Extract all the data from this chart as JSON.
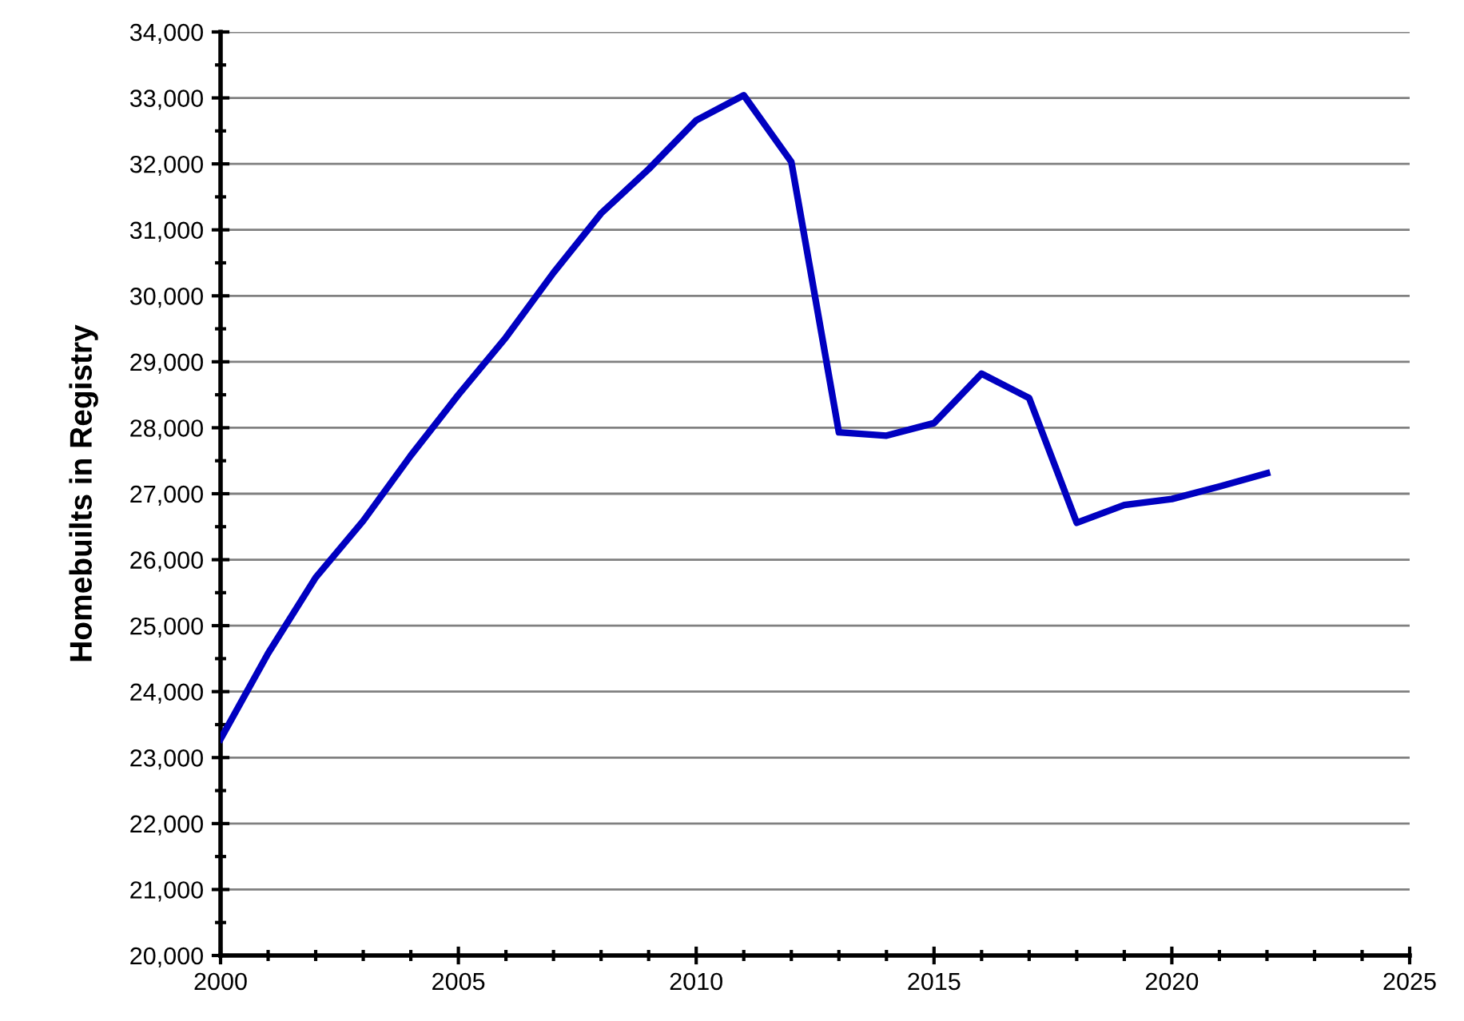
{
  "chart_data": {
    "type": "line",
    "ylabel": "Homebuilts in Registry",
    "x": [
      2000,
      2001,
      2002,
      2003,
      2004,
      2005,
      2006,
      2007,
      2008,
      2009,
      2010,
      2011,
      2012,
      2013,
      2014,
      2015,
      2016,
      2017,
      2018,
      2019,
      2020,
      2021,
      2022
    ],
    "series": [
      {
        "color": "#0000c0",
        "values": [
          23280,
          24580,
          25730,
          26590,
          27580,
          28500,
          29370,
          30350,
          31250,
          31920,
          32660,
          33040,
          32030,
          27930,
          27880,
          28070,
          28820,
          28450,
          26560,
          26830,
          26920,
          27110,
          27310
        ]
      }
    ],
    "xlim": [
      2000,
      2025
    ],
    "xticks": [
      2000,
      {
        "value": 2001,
        "label": null
      },
      {
        "value": 2002,
        "label": null
      },
      {
        "value": 2003,
        "label": null
      },
      {
        "value": 2004,
        "label": null
      },
      2005,
      {
        "value": 2006,
        "label": null
      },
      {
        "value": 2007,
        "label": null
      },
      {
        "value": 2008,
        "label": null
      },
      {
        "value": 2009,
        "label": null
      },
      2010,
      {
        "value": 2011,
        "label": null
      },
      {
        "value": 2012,
        "label": null
      },
      {
        "value": 2013,
        "label": null
      },
      {
        "value": 2014,
        "label": null
      },
      2015,
      {
        "value": 2016,
        "label": null
      },
      {
        "value": 2017,
        "label": null
      },
      {
        "value": 2018,
        "label": null
      },
      {
        "value": 2019,
        "label": null
      },
      2020,
      {
        "value": 2021,
        "label": null
      },
      {
        "value": 2022,
        "label": null
      },
      {
        "value": 2023,
        "label": null
      },
      {
        "value": 2024,
        "label": null
      },
      2025
    ],
    "ylim": [
      20000,
      34000
    ],
    "yticks": [
      {
        "value": 20000,
        "label": "20,000"
      },
      {
        "value": 20500,
        "label": null
      },
      {
        "value": 21000,
        "label": "21,000"
      },
      {
        "value": 21500,
        "label": null
      },
      {
        "value": 22000,
        "label": "22,000"
      },
      {
        "value": 22500,
        "label": null
      },
      {
        "value": 23000,
        "label": "23,000"
      },
      {
        "value": 23500,
        "label": null
      },
      {
        "value": 24000,
        "label": "24,000"
      },
      {
        "value": 24500,
        "label": null
      },
      {
        "value": 25000,
        "label": "25,000"
      },
      {
        "value": 25500,
        "label": null
      },
      {
        "value": 26000,
        "label": "26,000"
      },
      {
        "value": 26500,
        "label": null
      },
      {
        "value": 27000,
        "label": "27,000"
      },
      {
        "value": 27500,
        "label": null
      },
      {
        "value": 28000,
        "label": "28,000"
      },
      {
        "value": 28500,
        "label": null
      },
      {
        "value": 29000,
        "label": "29,000"
      },
      {
        "value": 29500,
        "label": null
      },
      {
        "value": 30000,
        "label": "30,000"
      },
      {
        "value": 30500,
        "label": null
      },
      {
        "value": 31000,
        "label": "31,000"
      },
      {
        "value": 31500,
        "label": null
      },
      {
        "value": 32000,
        "label": "32,000"
      },
      {
        "value": 32500,
        "label": null
      },
      {
        "value": 33000,
        "label": "33,000"
      },
      {
        "value": 33500,
        "label": null
      },
      {
        "value": 34000,
        "label": "34,000"
      }
    ],
    "grid": "y",
    "marker": "none",
    "line_style": "solid",
    "legend": false
  }
}
